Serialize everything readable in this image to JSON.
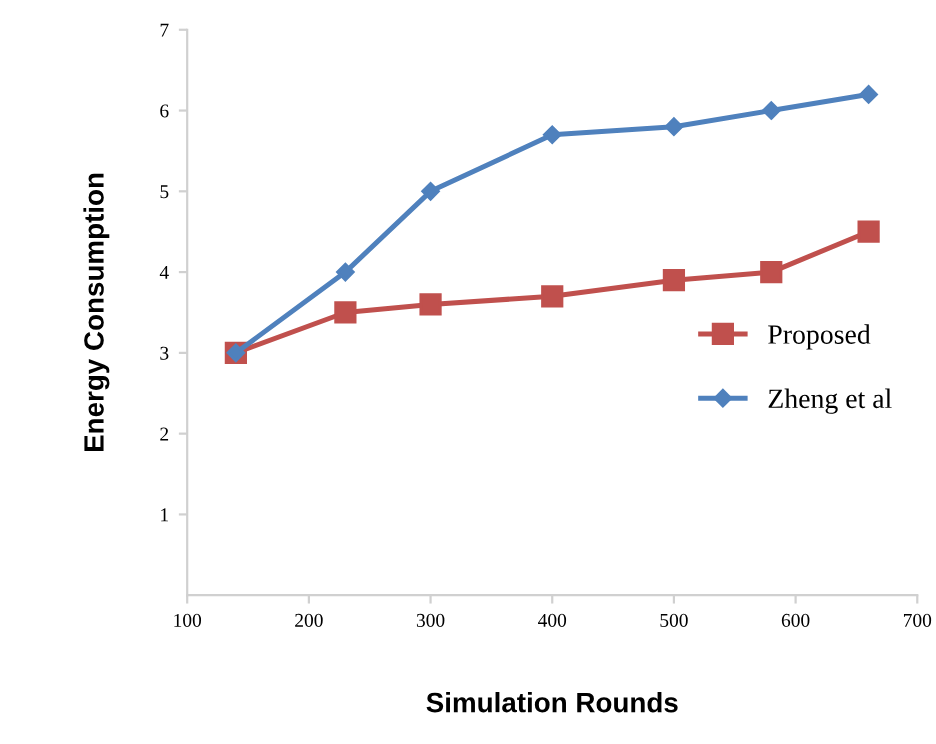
{
  "chart_data": {
    "type": "line",
    "xlabel": "Simulation Rounds",
    "ylabel": "Energy Consumption",
    "xlim": [
      100,
      700
    ],
    "xticks": [
      100,
      200,
      300,
      400,
      500,
      600,
      700
    ],
    "ylim": [
      0,
      7
    ],
    "yticks": [
      1,
      2,
      3,
      4,
      5,
      6,
      7
    ],
    "grid": false,
    "legend": "right",
    "series": [
      {
        "name": "Proposed",
        "color": "#c0504d",
        "marker": "square",
        "x": [
          140,
          230,
          300,
          400,
          500,
          580,
          660
        ],
        "values": [
          3.0,
          3.5,
          3.6,
          3.7,
          3.9,
          4.0,
          4.5
        ]
      },
      {
        "name": "Zheng et al",
        "color": "#4f81bd",
        "marker": "diamond",
        "x": [
          140,
          230,
          300,
          400,
          500,
          580,
          660
        ],
        "values": [
          3.0,
          4.0,
          5.0,
          5.7,
          5.8,
          6.0,
          6.2
        ]
      }
    ]
  }
}
